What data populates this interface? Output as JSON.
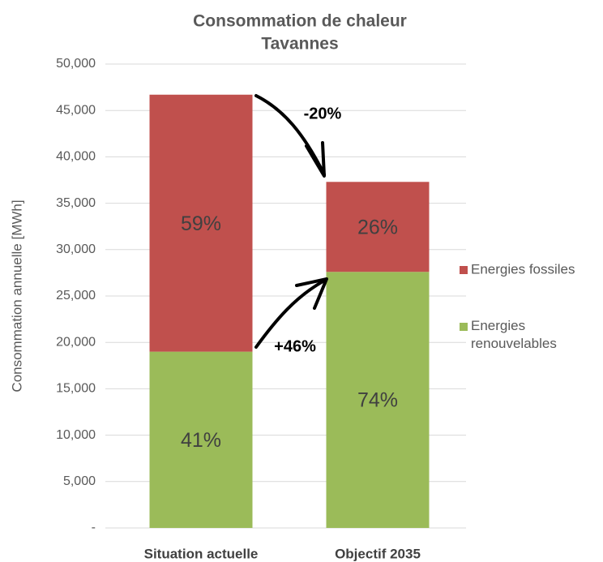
{
  "chart_data": {
    "type": "stacked_bar",
    "title": [
      "Consommation de chaleur",
      "Tavannes"
    ],
    "ylabel": "Consommation annuelle [MWh]",
    "categories": [
      "Situation actuelle",
      "Objectif 2035"
    ],
    "series": [
      {
        "name": "Energies renouvelables",
        "color": "#9bbb59",
        "values": [
          19000,
          27600
        ],
        "percent_labels": [
          "41%",
          "74%"
        ]
      },
      {
        "name": "Energies fossiles",
        "color": "#c0504d",
        "values": [
          27700,
          9700
        ],
        "percent_labels": [
          "59%",
          "26%"
        ]
      }
    ],
    "ylim": [
      0,
      50000
    ],
    "yticks": [
      {
        "value": 0,
        "label": "-"
      },
      {
        "value": 5000,
        "label": "5,000"
      },
      {
        "value": 10000,
        "label": "10,000"
      },
      {
        "value": 15000,
        "label": "15,000"
      },
      {
        "value": 20000,
        "label": "20,000"
      },
      {
        "value": 25000,
        "label": "25,000"
      },
      {
        "value": 30000,
        "label": "30,000"
      },
      {
        "value": 35000,
        "label": "35,000"
      },
      {
        "value": 40000,
        "label": "40,000"
      },
      {
        "value": 45000,
        "label": "45,000"
      },
      {
        "value": 50000,
        "label": "50,000"
      }
    ],
    "grid": true,
    "legend": "right",
    "annotations": [
      "-20%",
      "+46%"
    ]
  }
}
